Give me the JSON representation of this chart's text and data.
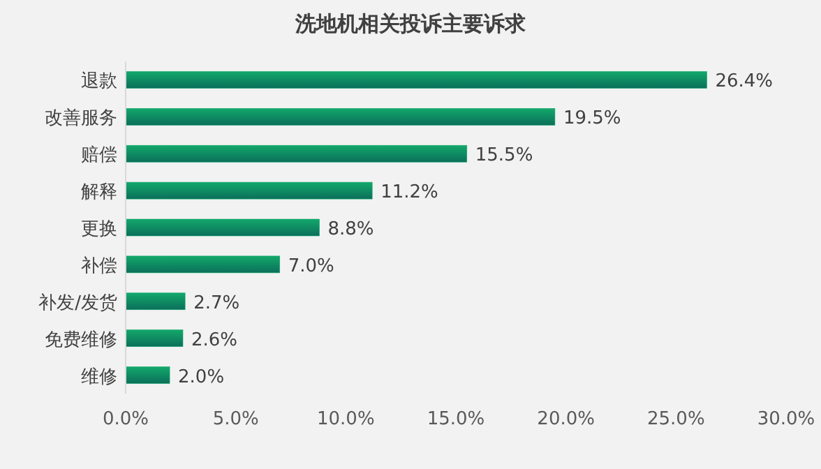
{
  "chart_data": {
    "type": "bar",
    "orientation": "horizontal",
    "title": "洗地机相关投诉主要诉求",
    "categories": [
      "退款",
      "改善服务",
      "赔偿",
      "解释",
      "更换",
      "补偿",
      "补发/发货",
      "免费维修",
      "维修"
    ],
    "values": [
      26.4,
      19.5,
      15.5,
      11.2,
      8.8,
      7.0,
      2.7,
      2.6,
      2.0
    ],
    "value_labels": [
      "26.4%",
      "19.5%",
      "15.5%",
      "11.2%",
      "8.8%",
      "7.0%",
      "2.7%",
      "2.6%",
      "2.0%"
    ],
    "color": "#13a86b",
    "xlim": [
      0,
      30
    ],
    "xticks": [
      {
        "value": 0,
        "label": "0.0%"
      },
      {
        "value": 5,
        "label": "5.0%"
      },
      {
        "value": 10,
        "label": "10.0%"
      },
      {
        "value": 15,
        "label": "15.0%"
      },
      {
        "value": 20,
        "label": "20.0%"
      },
      {
        "value": 25,
        "label": "25.0%"
      },
      {
        "value": 30,
        "label": "30.0%"
      }
    ],
    "grid": false
  }
}
